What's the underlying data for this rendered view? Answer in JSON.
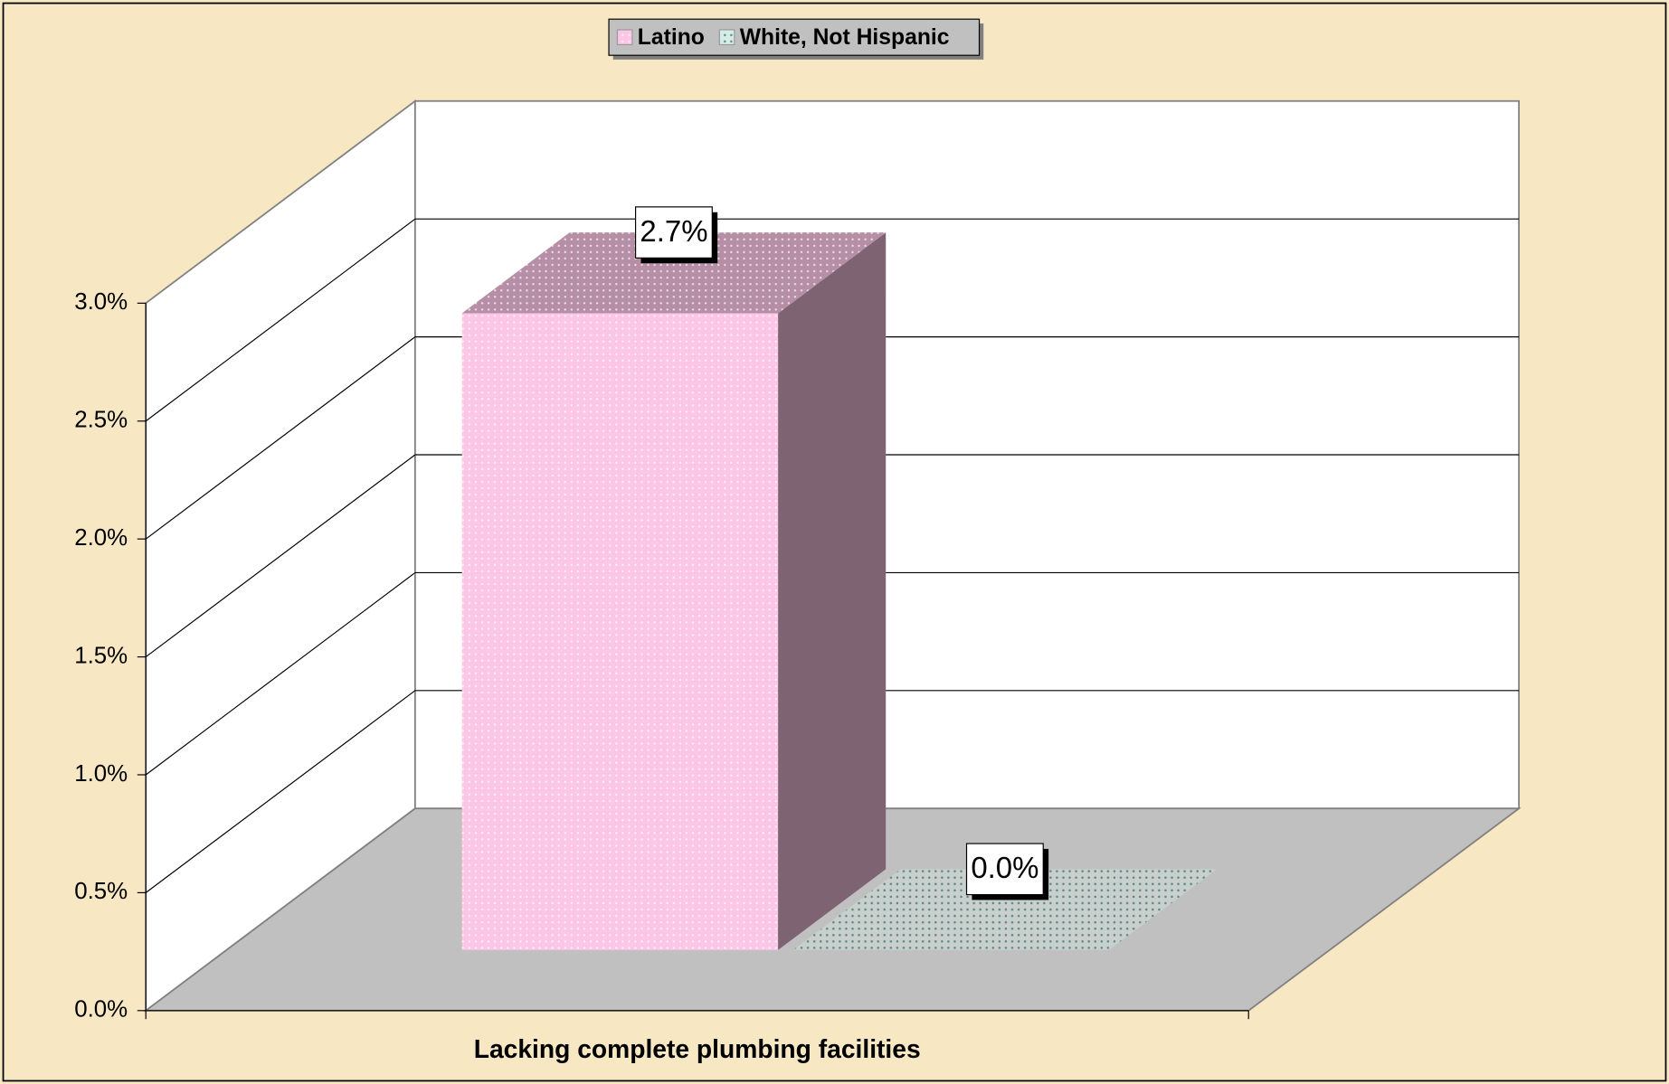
{
  "chart_data": {
    "type": "bar",
    "categories": [
      "Lacking complete plumbing facilities"
    ],
    "series": [
      {
        "name": "Latino",
        "color": "#fcc6e6",
        "values": [
          2.7
        ],
        "value_labels": [
          "2.7%"
        ]
      },
      {
        "name": "White, Not Hispanic",
        "color": "#d6ece6",
        "values": [
          0.0
        ],
        "value_labels": [
          "0.0%"
        ]
      }
    ],
    "ylim": [
      0,
      3
    ],
    "yticks": [
      {
        "value": 0,
        "label": "0.0%"
      },
      {
        "value": 0.5,
        "label": "0.5%"
      },
      {
        "value": 1,
        "label": "1.0%"
      },
      {
        "value": 1.5,
        "label": "1.5%"
      },
      {
        "value": 2,
        "label": "2.0%"
      },
      {
        "value": 2.5,
        "label": "2.5%"
      },
      {
        "value": 3,
        "label": "3.0%"
      }
    ],
    "grid": true,
    "legend": "top"
  }
}
